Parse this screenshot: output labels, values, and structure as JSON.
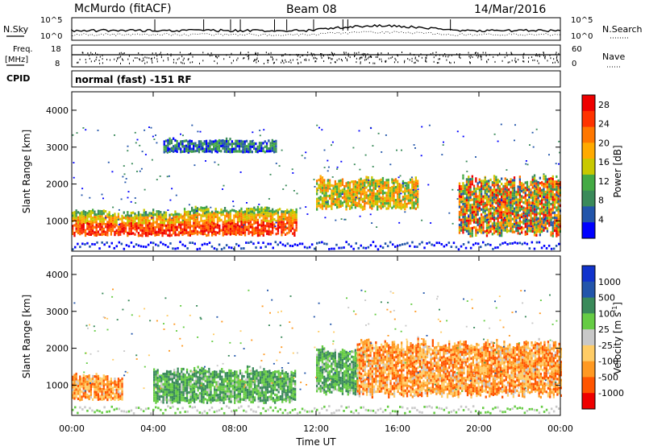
{
  "header": {
    "station": "McMurdo (fitACF)",
    "beam": "Beam 08",
    "date": "14/Mar/2016"
  },
  "aux_panels": {
    "nsky": {
      "label": "N.Sky",
      "ticks": [
        "10^5",
        "10^0"
      ]
    },
    "nsearch": {
      "label": "N.Search",
      "ticks": [
        "10^5",
        "10^0"
      ]
    },
    "freq": {
      "label_line1": "Freq.",
      "label_line2": "[MHz]",
      "ticks": [
        "18",
        "8"
      ]
    },
    "nave": {
      "label": "Nave",
      "ticks": [
        "60",
        "0"
      ]
    },
    "cpid": {
      "label": "CPID",
      "value": "normal (fast) -151 RF"
    }
  },
  "colors": {
    "power_scale": [
      "#0000ff",
      "#2255aa",
      "#3a8a5a",
      "#44aa44",
      "#c8c800",
      "#ffaa00",
      "#ff7700",
      "#ff3300",
      "#ee0000"
    ],
    "velocity_scale": [
      "#ee0000",
      "#ff5500",
      "#ff9922",
      "#ffcc66",
      "#c8c8c8",
      "#66cc44",
      "#3a8a5a",
      "#2255aa",
      "#1133cc"
    ]
  },
  "chart_data": [
    {
      "type": "heatmap",
      "title": "",
      "quantity": "Power",
      "xlabel": "",
      "ylabel": "Slant Range [km]",
      "xlim": [
        "00:00",
        "00:00"
      ],
      "ylim": [
        180,
        4500
      ],
      "x_ticks": [
        "00:00",
        "04:00",
        "08:00",
        "12:00",
        "16:00",
        "20:00",
        "00:00"
      ],
      "y_ticks": [
        1000,
        2000,
        3000,
        4000
      ],
      "colorbar": {
        "label": "Power [dB]",
        "ticks": [
          4,
          8,
          12,
          16,
          20,
          24,
          28
        ],
        "range": [
          0,
          30
        ]
      },
      "regions": [
        {
          "t_start": 0.0,
          "t_end": 5.5,
          "range_min": 500,
          "range_max": 1300,
          "value": "high (24-30 dB)"
        },
        {
          "t_start": 5.5,
          "t_end": 11.0,
          "range_min": 500,
          "range_max": 1400,
          "value": "high (20-30 dB)"
        },
        {
          "t_start": 12.0,
          "t_end": 17.0,
          "range_min": 1200,
          "range_max": 2200,
          "value": "moderate (12-24 dB)"
        },
        {
          "t_start": 19.0,
          "t_end": 24.0,
          "range_min": 400,
          "range_max": 2300,
          "value": "mixed (8-28 dB)"
        },
        {
          "t_start": 4.5,
          "t_end": 10.0,
          "range_min": 2800,
          "range_max": 3200,
          "value": "weak (4-16 dB)"
        }
      ]
    },
    {
      "type": "heatmap",
      "title": "",
      "quantity": "Velocity",
      "xlabel": "Time UT",
      "ylabel": "Slant Range [km]",
      "xlim": [
        "00:00",
        "00:00"
      ],
      "ylim": [
        180,
        4500
      ],
      "x_ticks": [
        "00:00",
        "04:00",
        "08:00",
        "12:00",
        "16:00",
        "20:00",
        "00:00"
      ],
      "y_ticks": [
        1000,
        2000,
        3000,
        4000
      ],
      "colorbar": {
        "label": "Velocity [m s^-1]",
        "ticks": [
          1000,
          500,
          100,
          25,
          -25,
          -100,
          -500,
          -1000
        ]
      },
      "regions": [
        {
          "t_start": 0.0,
          "t_end": 2.5,
          "range_min": 500,
          "range_max": 1300,
          "value": "-100 to -500 m/s"
        },
        {
          "t_start": 4.0,
          "t_end": 11.0,
          "range_min": 400,
          "range_max": 1500,
          "value": "100 to 500 m/s"
        },
        {
          "t_start": 12.0,
          "t_end": 14.0,
          "range_min": 600,
          "range_max": 2100,
          "value": "100 to 500 m/s"
        },
        {
          "t_start": 14.0,
          "t_end": 24.0,
          "range_min": 500,
          "range_max": 2300,
          "value": "-100 to -500 m/s"
        }
      ]
    }
  ]
}
